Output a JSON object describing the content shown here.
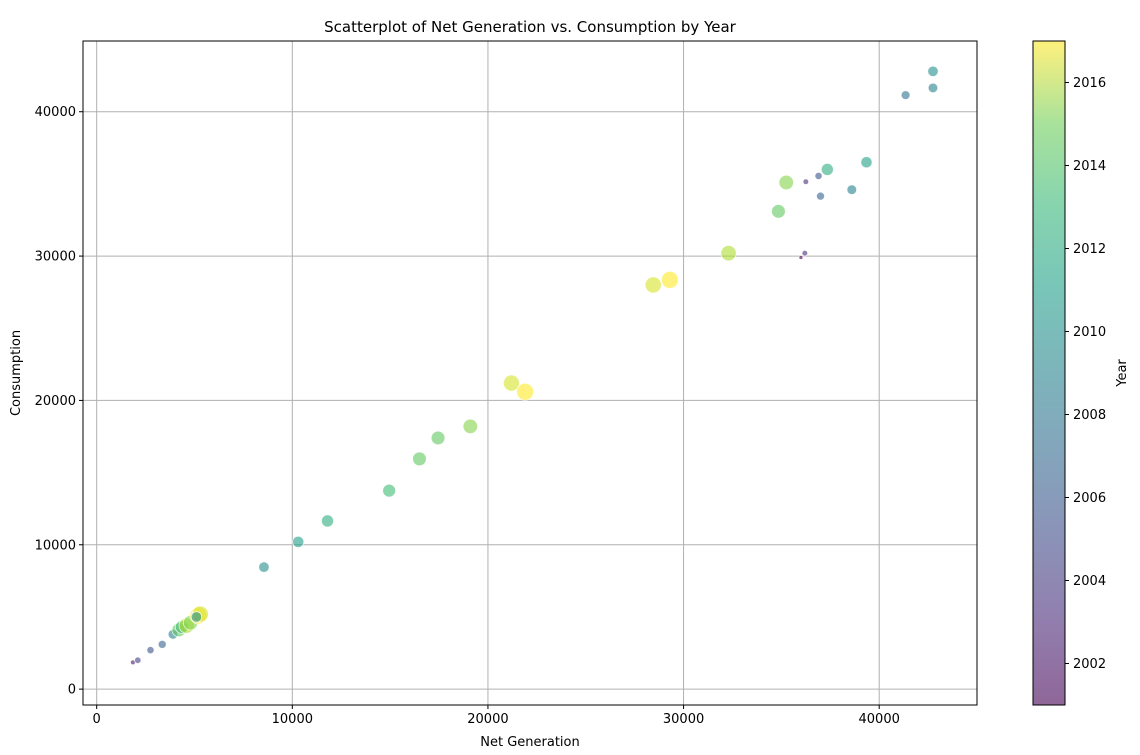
{
  "chart_data": {
    "type": "scatter",
    "title": "Scatterplot of Net Generation vs. Consumption by Year",
    "xlabel": "Net Generation",
    "ylabel": "Consumption",
    "xlim": [
      -700,
      45000
    ],
    "ylim": [
      -1100,
      44900
    ],
    "xticks": [
      0,
      10000,
      20000,
      30000,
      40000
    ],
    "yticks": [
      0,
      10000,
      20000,
      30000,
      40000
    ],
    "grid": true,
    "colorbar": {
      "label": "Year",
      "range": [
        2001,
        2017
      ],
      "ticks": [
        2002,
        2004,
        2006,
        2008,
        2010,
        2012,
        2014,
        2016
      ],
      "colormap": "viridis",
      "alpha": 0.6
    },
    "points": [
      {
        "x": 1850,
        "y": 1850,
        "year": 2002
      },
      {
        "x": 2100,
        "y": 2000,
        "year": 2004
      },
      {
        "x": 2750,
        "y": 2700,
        "year": 2005
      },
      {
        "x": 3350,
        "y": 3100,
        "year": 2006
      },
      {
        "x": 3900,
        "y": 3800,
        "year": 2008
      },
      {
        "x": 4200,
        "y": 4100,
        "year": 2013
      },
      {
        "x": 4350,
        "y": 4300,
        "year": 2012
      },
      {
        "x": 4600,
        "y": 4400,
        "year": 2015
      },
      {
        "x": 4800,
        "y": 4600,
        "year": 2014
      },
      {
        "x": 5200,
        "y": 5100,
        "year": 2017
      },
      {
        "x": 5300,
        "y": 5200,
        "year": 2016
      },
      {
        "x": 5100,
        "y": 5000,
        "year": 2009
      },
      {
        "x": 8550,
        "y": 8450,
        "year": 2009
      },
      {
        "x": 10300,
        "y": 10200,
        "year": 2010
      },
      {
        "x": 11800,
        "y": 11650,
        "year": 2011
      },
      {
        "x": 14950,
        "y": 13750,
        "year": 2012
      },
      {
        "x": 16500,
        "y": 15950,
        "year": 2013
      },
      {
        "x": 17450,
        "y": 17400,
        "year": 2013
      },
      {
        "x": 19100,
        "y": 18200,
        "year": 2014
      },
      {
        "x": 21200,
        "y": 21200,
        "year": 2016
      },
      {
        "x": 21900,
        "y": 20600,
        "year": 2017
      },
      {
        "x": 28450,
        "y": 28000,
        "year": 2016
      },
      {
        "x": 29300,
        "y": 28350,
        "year": 2017
      },
      {
        "x": 32300,
        "y": 30200,
        "year": 2015
      },
      {
        "x": 34850,
        "y": 33100,
        "year": 2013
      },
      {
        "x": 35250,
        "y": 35100,
        "year": 2014
      },
      {
        "x": 36000,
        "y": 29900,
        "year": 2001
      },
      {
        "x": 36200,
        "y": 30200,
        "year": 2003
      },
      {
        "x": 36250,
        "y": 35150,
        "year": 2003
      },
      {
        "x": 36900,
        "y": 35550,
        "year": 2005
      },
      {
        "x": 37000,
        "y": 34150,
        "year": 2006
      },
      {
        "x": 37350,
        "y": 36000,
        "year": 2011
      },
      {
        "x": 38600,
        "y": 34600,
        "year": 2008
      },
      {
        "x": 39350,
        "y": 36500,
        "year": 2010
      },
      {
        "x": 41350,
        "y": 41150,
        "year": 2007
      },
      {
        "x": 42750,
        "y": 41650,
        "year": 2008
      },
      {
        "x": 42750,
        "y": 42800,
        "year": 2009
      }
    ]
  }
}
